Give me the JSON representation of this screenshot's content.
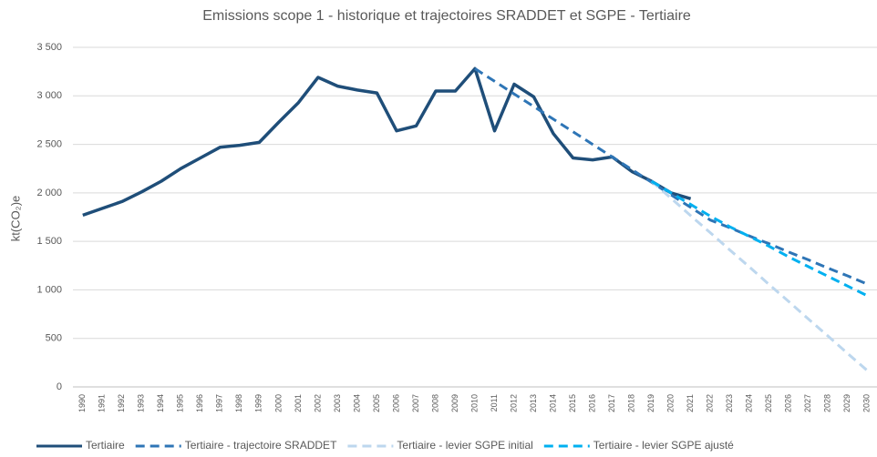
{
  "chart_data": {
    "type": "line",
    "title": "Emissions scope 1 - historique et trajectoires SRADDET et SGPE - Tertiaire",
    "y_label": "kt(CO₂)e",
    "categories": [
      "1990",
      "1991",
      "1992",
      "1993",
      "1994",
      "1995",
      "1996",
      "1997",
      "1998",
      "1999",
      "2000",
      "2001",
      "2002",
      "2003",
      "2004",
      "2005",
      "2006",
      "2007",
      "2008",
      "2009",
      "2010",
      "2011",
      "2012",
      "2013",
      "2014",
      "2015",
      "2016",
      "2017",
      "2018",
      "2019",
      "2020",
      "2021",
      "2022",
      "2023",
      "2024",
      "2025",
      "2026",
      "2027",
      "2028",
      "2029",
      "2030"
    ],
    "ylim": [
      0,
      3500
    ],
    "yticks": [
      0,
      500,
      {
        "value": 1000,
        "label": "1 000"
      },
      {
        "value": 1500,
        "label": "1 500"
      },
      {
        "value": 2000,
        "label": "2 000"
      },
      {
        "value": 2500,
        "label": "2 500"
      },
      {
        "value": 3000,
        "label": "3 000"
      },
      {
        "value": 3500,
        "label": "3 500"
      }
    ],
    "grid": true,
    "legend": "bottom",
    "series": [
      {
        "name": "Tertiaire",
        "color": "#1f4e79",
        "dashed": false,
        "values": [
          1770,
          1840,
          1910,
          2010,
          2120,
          2250,
          2360,
          2470,
          2490,
          2520,
          2730,
          2930,
          3190,
          3100,
          3060,
          3030,
          2640,
          2690,
          3050,
          3050,
          3280,
          2640,
          3120,
          2990,
          2610,
          2360,
          2340,
          2370,
          2220,
          2120,
          2000,
          1940,
          null,
          null,
          null,
          null,
          null,
          null,
          null,
          null,
          null
        ]
      },
      {
        "name": "Tertiaire - trajectoire SRADDET",
        "color": "#2e75b6",
        "dashed": true,
        "values": [
          null,
          null,
          null,
          null,
          null,
          null,
          null,
          null,
          null,
          null,
          null,
          null,
          null,
          null,
          null,
          null,
          null,
          null,
          null,
          null,
          3280,
          3150,
          3020,
          2890,
          2760,
          2630,
          2500,
          2370,
          2240,
          2110,
          1980,
          1850,
          1720,
          1640,
          1555,
          1475,
          1390,
          1310,
          1225,
          1145,
          1060
        ]
      },
      {
        "name": "Tertiaire - levier SGPE initial",
        "color": "#bdd7ee",
        "dashed": true,
        "values": [
          null,
          null,
          null,
          null,
          null,
          null,
          null,
          null,
          null,
          null,
          null,
          null,
          null,
          null,
          null,
          null,
          null,
          null,
          null,
          null,
          null,
          null,
          null,
          null,
          null,
          null,
          null,
          null,
          null,
          2120,
          1945,
          1765,
          1590,
          1410,
          1235,
          1055,
          880,
          700,
          525,
          345,
          170
        ]
      },
      {
        "name": "Tertiaire - levier SGPE ajusté",
        "color": "#00b0f0",
        "dashed": true,
        "values": [
          null,
          null,
          null,
          null,
          null,
          null,
          null,
          null,
          null,
          null,
          null,
          null,
          null,
          null,
          null,
          null,
          null,
          null,
          null,
          null,
          null,
          null,
          null,
          null,
          null,
          null,
          null,
          null,
          null,
          2120,
          2000,
          1880,
          1760,
          1650,
          1550,
          1450,
          1340,
          1240,
          1140,
          1040,
          940
        ]
      }
    ]
  }
}
